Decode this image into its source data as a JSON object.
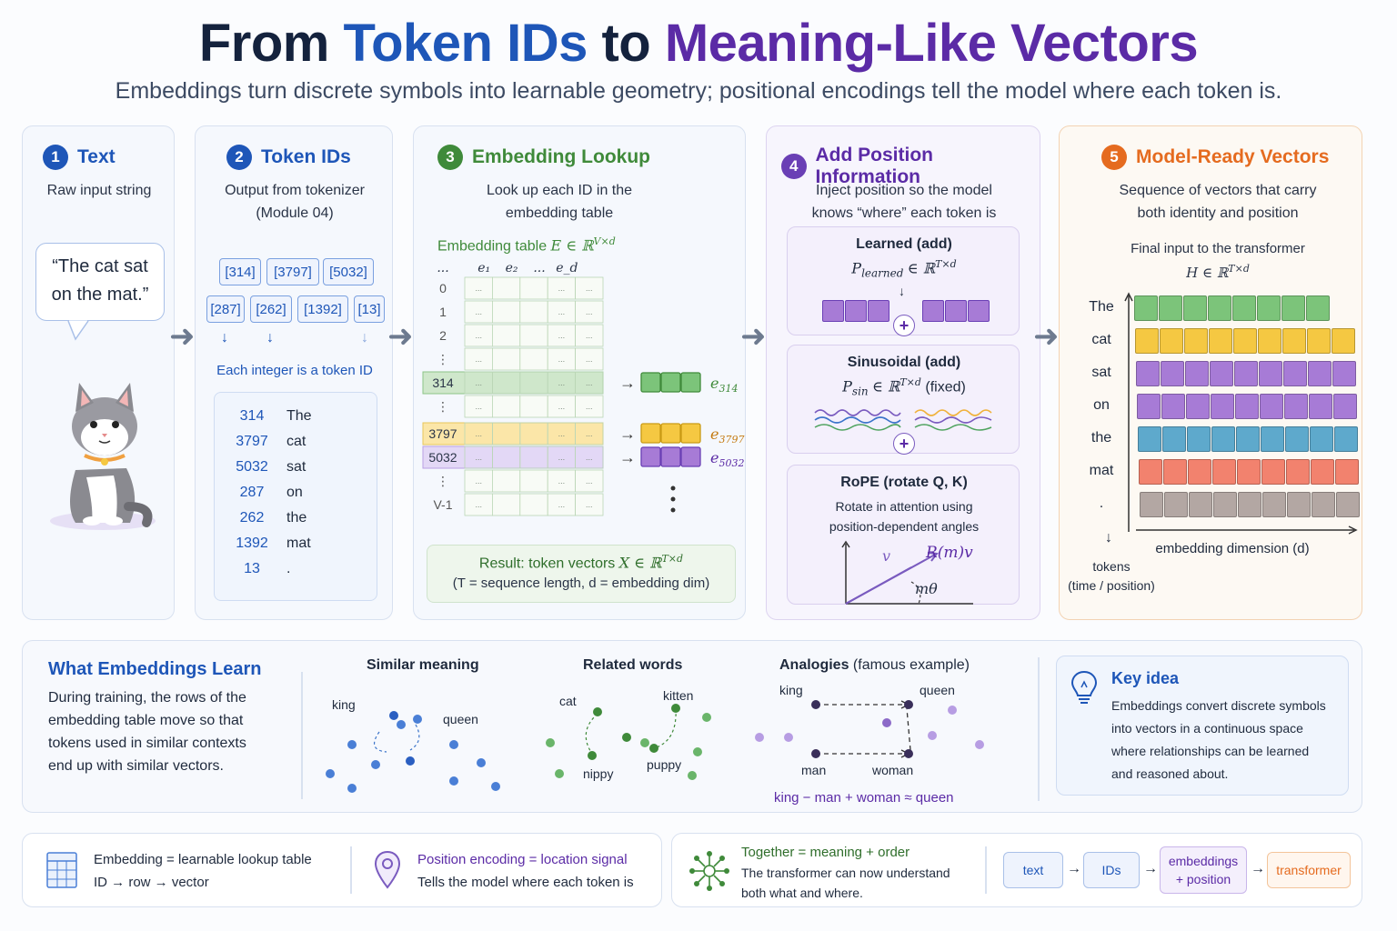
{
  "header": {
    "title_part1": "From",
    "title_part2": "Token IDs",
    "title_part3": "to",
    "title_part4": "Meaning-Like Vectors",
    "subtitle": "Embeddings turn discrete symbols into learnable geometry; positional encodings tell the model where each token is."
  },
  "steps": {
    "s1": {
      "num": "1",
      "title": "Text",
      "desc": "Raw input string",
      "quote_line1": "“The cat sat",
      "quote_line2": "on the mat.”"
    },
    "s2": {
      "num": "2",
      "title": "Token IDs",
      "desc_line1": "Output from tokenizer",
      "desc_line2": "(Module 04)",
      "row1": [
        "[314]",
        "[3797]",
        "[5032]"
      ],
      "row2": [
        "[287]",
        "[262]",
        "[1392]",
        "[13]"
      ],
      "caption": "Each integer is a token ID",
      "table": [
        {
          "id": "314",
          "tok": "The"
        },
        {
          "id": "3797",
          "tok": "cat"
        },
        {
          "id": "5032",
          "tok": "sat"
        },
        {
          "id": "287",
          "tok": "on"
        },
        {
          "id": "262",
          "tok": "the"
        },
        {
          "id": "1392",
          "tok": "mat"
        },
        {
          "id": "13",
          "tok": "."
        }
      ]
    },
    "s3": {
      "num": "3",
      "title": "Embedding Lookup",
      "desc_line1": "Look up each ID in the",
      "desc_line2": "embedding table",
      "table_label": "Embedding table",
      "table_math": "E ∈ ℝ",
      "table_sup": "V×d",
      "col_heads": [
        "...",
        "e₁",
        "e₂",
        "...",
        "e_d"
      ],
      "row_labels": [
        "0",
        "1",
        "2",
        "⋮",
        "314",
        "⋮",
        "3797",
        "5032",
        "⋮",
        "V-1"
      ],
      "cell_dots": "...",
      "out_314": "e",
      "out_314_sub": "314",
      "out_3797": "e",
      "out_3797_sub": "3797",
      "out_5032": "e",
      "out_5032_sub": "5032",
      "result_line1": "Result: token vectors",
      "result_math": "X ∈ ℝ",
      "result_sup": "T×d",
      "result_line2": "(T = sequence length, d = embedding dim)"
    },
    "s4": {
      "num": "4",
      "title": "Add Position Information",
      "desc_line1": "Inject position so the model",
      "desc_line2": "knows “where” each token is",
      "learned_title": "Learned (add)",
      "learned_math": "P",
      "learned_sub": "learned",
      "learned_tail": "∈ ℝ",
      "learned_sup": "T×d",
      "sin_title": "Sinusoidal (add)",
      "sin_math": "P",
      "sin_sub": "sin",
      "sin_tail": "∈ ℝ",
      "sin_sup": "T×d",
      "sin_fixed": "(fixed)",
      "rope_title": "RoPE (rotate Q, K)",
      "rope_line1": "Rotate in attention using",
      "rope_line2": "position-dependent angles",
      "rope_v": "v",
      "rope_rv": "R(m)v",
      "rope_angle": "mθ",
      "plus": "+"
    },
    "s5": {
      "num": "5",
      "title": "Model-Ready Vectors",
      "desc_line1": "Sequence of vectors that carry",
      "desc_line2": "both identity and position",
      "final_label": "Final input to the transformer",
      "final_math": "H ∈ ℝ",
      "final_sup": "T×d",
      "tokens": [
        "The",
        "cat",
        "sat",
        "on",
        "the",
        "mat",
        "."
      ],
      "axis_y_line1": "tokens",
      "axis_y_line2": "(time / position)",
      "axis_x": "embedding dimension (d)",
      "row_colors": [
        "#7cc47a",
        "#f5c842",
        "#a77bd6",
        "#a77bd6",
        "#5ea9cc",
        "#f2826e",
        "#b3a7a3"
      ]
    }
  },
  "learn": {
    "title": "What Embeddings Learn",
    "body": [
      "During training, the rows of the",
      "embedding table move so that",
      "tokens used in similar contexts",
      "end up with similar vectors."
    ],
    "similar_title": "Similar meaning",
    "similar_king": "king",
    "similar_queen": "queen",
    "related_title": "Related words",
    "related_cat": "cat",
    "related_kitten": "kitten",
    "related_nippy": "nippy",
    "related_puppy": "puppy",
    "analogy_title": "Analogies",
    "analogy_title_tail": "(famous example)",
    "analogy_king": "king",
    "analogy_queen": "queen",
    "analogy_man": "man",
    "analogy_woman": "woman",
    "analogy_formula": "king − man + woman ≈ queen",
    "key_title": "Key idea",
    "key_body": [
      "Embeddings convert discrete symbols",
      "into vectors in a continuous space",
      "where relationships can be learned",
      "and reasoned about."
    ]
  },
  "footer": {
    "emb_line1": "Embedding = learnable lookup table",
    "emb_line2": "ID → row → vector",
    "pos_line1": "Position encoding = location signal",
    "pos_line2": "Tells the model where each token is",
    "tog_line1": "Together = meaning + order",
    "tog_line2": "The transformer can now understand",
    "tog_line3": "both what and where.",
    "flow": [
      "text",
      "IDs",
      "embeddings",
      "+ position",
      "transformer"
    ],
    "flow_arrow": "→"
  },
  "colors": {
    "blue": "#1e56b8",
    "green": "#3f8a3a",
    "purple": "#5b2ba6",
    "orange": "#e56b1f",
    "navy": "#14223d"
  }
}
